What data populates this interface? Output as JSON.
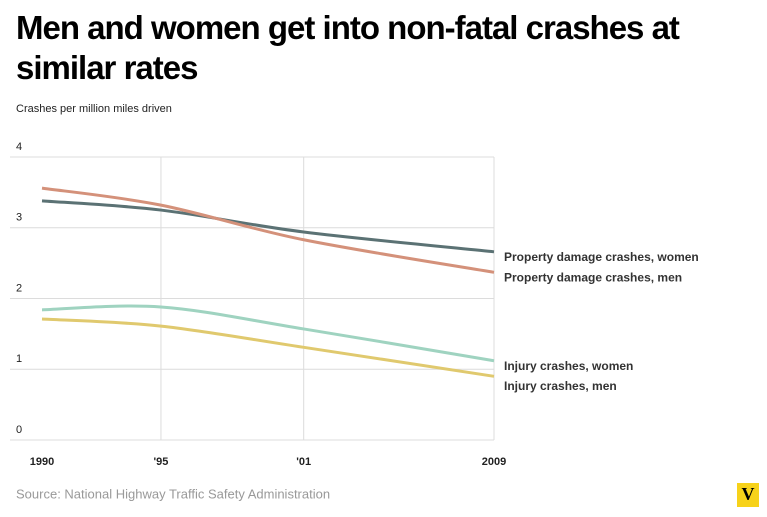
{
  "chart_data": {
    "type": "line",
    "title": "Men and women get into non-fatal crashes at similar rates",
    "subtitle": "Crashes per million miles driven",
    "source": "Source: National Highway Traffic Safety Administration",
    "logo": "V",
    "x": [
      1990,
      1995,
      2001,
      2009
    ],
    "xlim": [
      1990,
      2009
    ],
    "xticks": [
      1990,
      {
        "value": 1995,
        "label": "'95"
      },
      {
        "value": 2001,
        "label": "'01"
      },
      2009
    ],
    "ylim": [
      0,
      4
    ],
    "yticks": [
      0,
      1,
      2,
      3,
      4
    ],
    "grid": true,
    "series": [
      {
        "name": "Property damage crashes, women",
        "color": "#5b7274",
        "values": [
          3.38,
          3.25,
          2.94,
          2.66
        ]
      },
      {
        "name": "Property damage crashes, men",
        "color": "#d4917a",
        "values": [
          3.56,
          3.32,
          2.83,
          2.37
        ]
      },
      {
        "name": "Injury crashes, women",
        "color": "#9fd3c0",
        "values": [
          1.84,
          1.88,
          1.57,
          1.12
        ]
      },
      {
        "name": "Injury crashes, men",
        "color": "#e0c96e",
        "values": [
          1.71,
          1.61,
          1.31,
          0.9
        ]
      }
    ]
  }
}
